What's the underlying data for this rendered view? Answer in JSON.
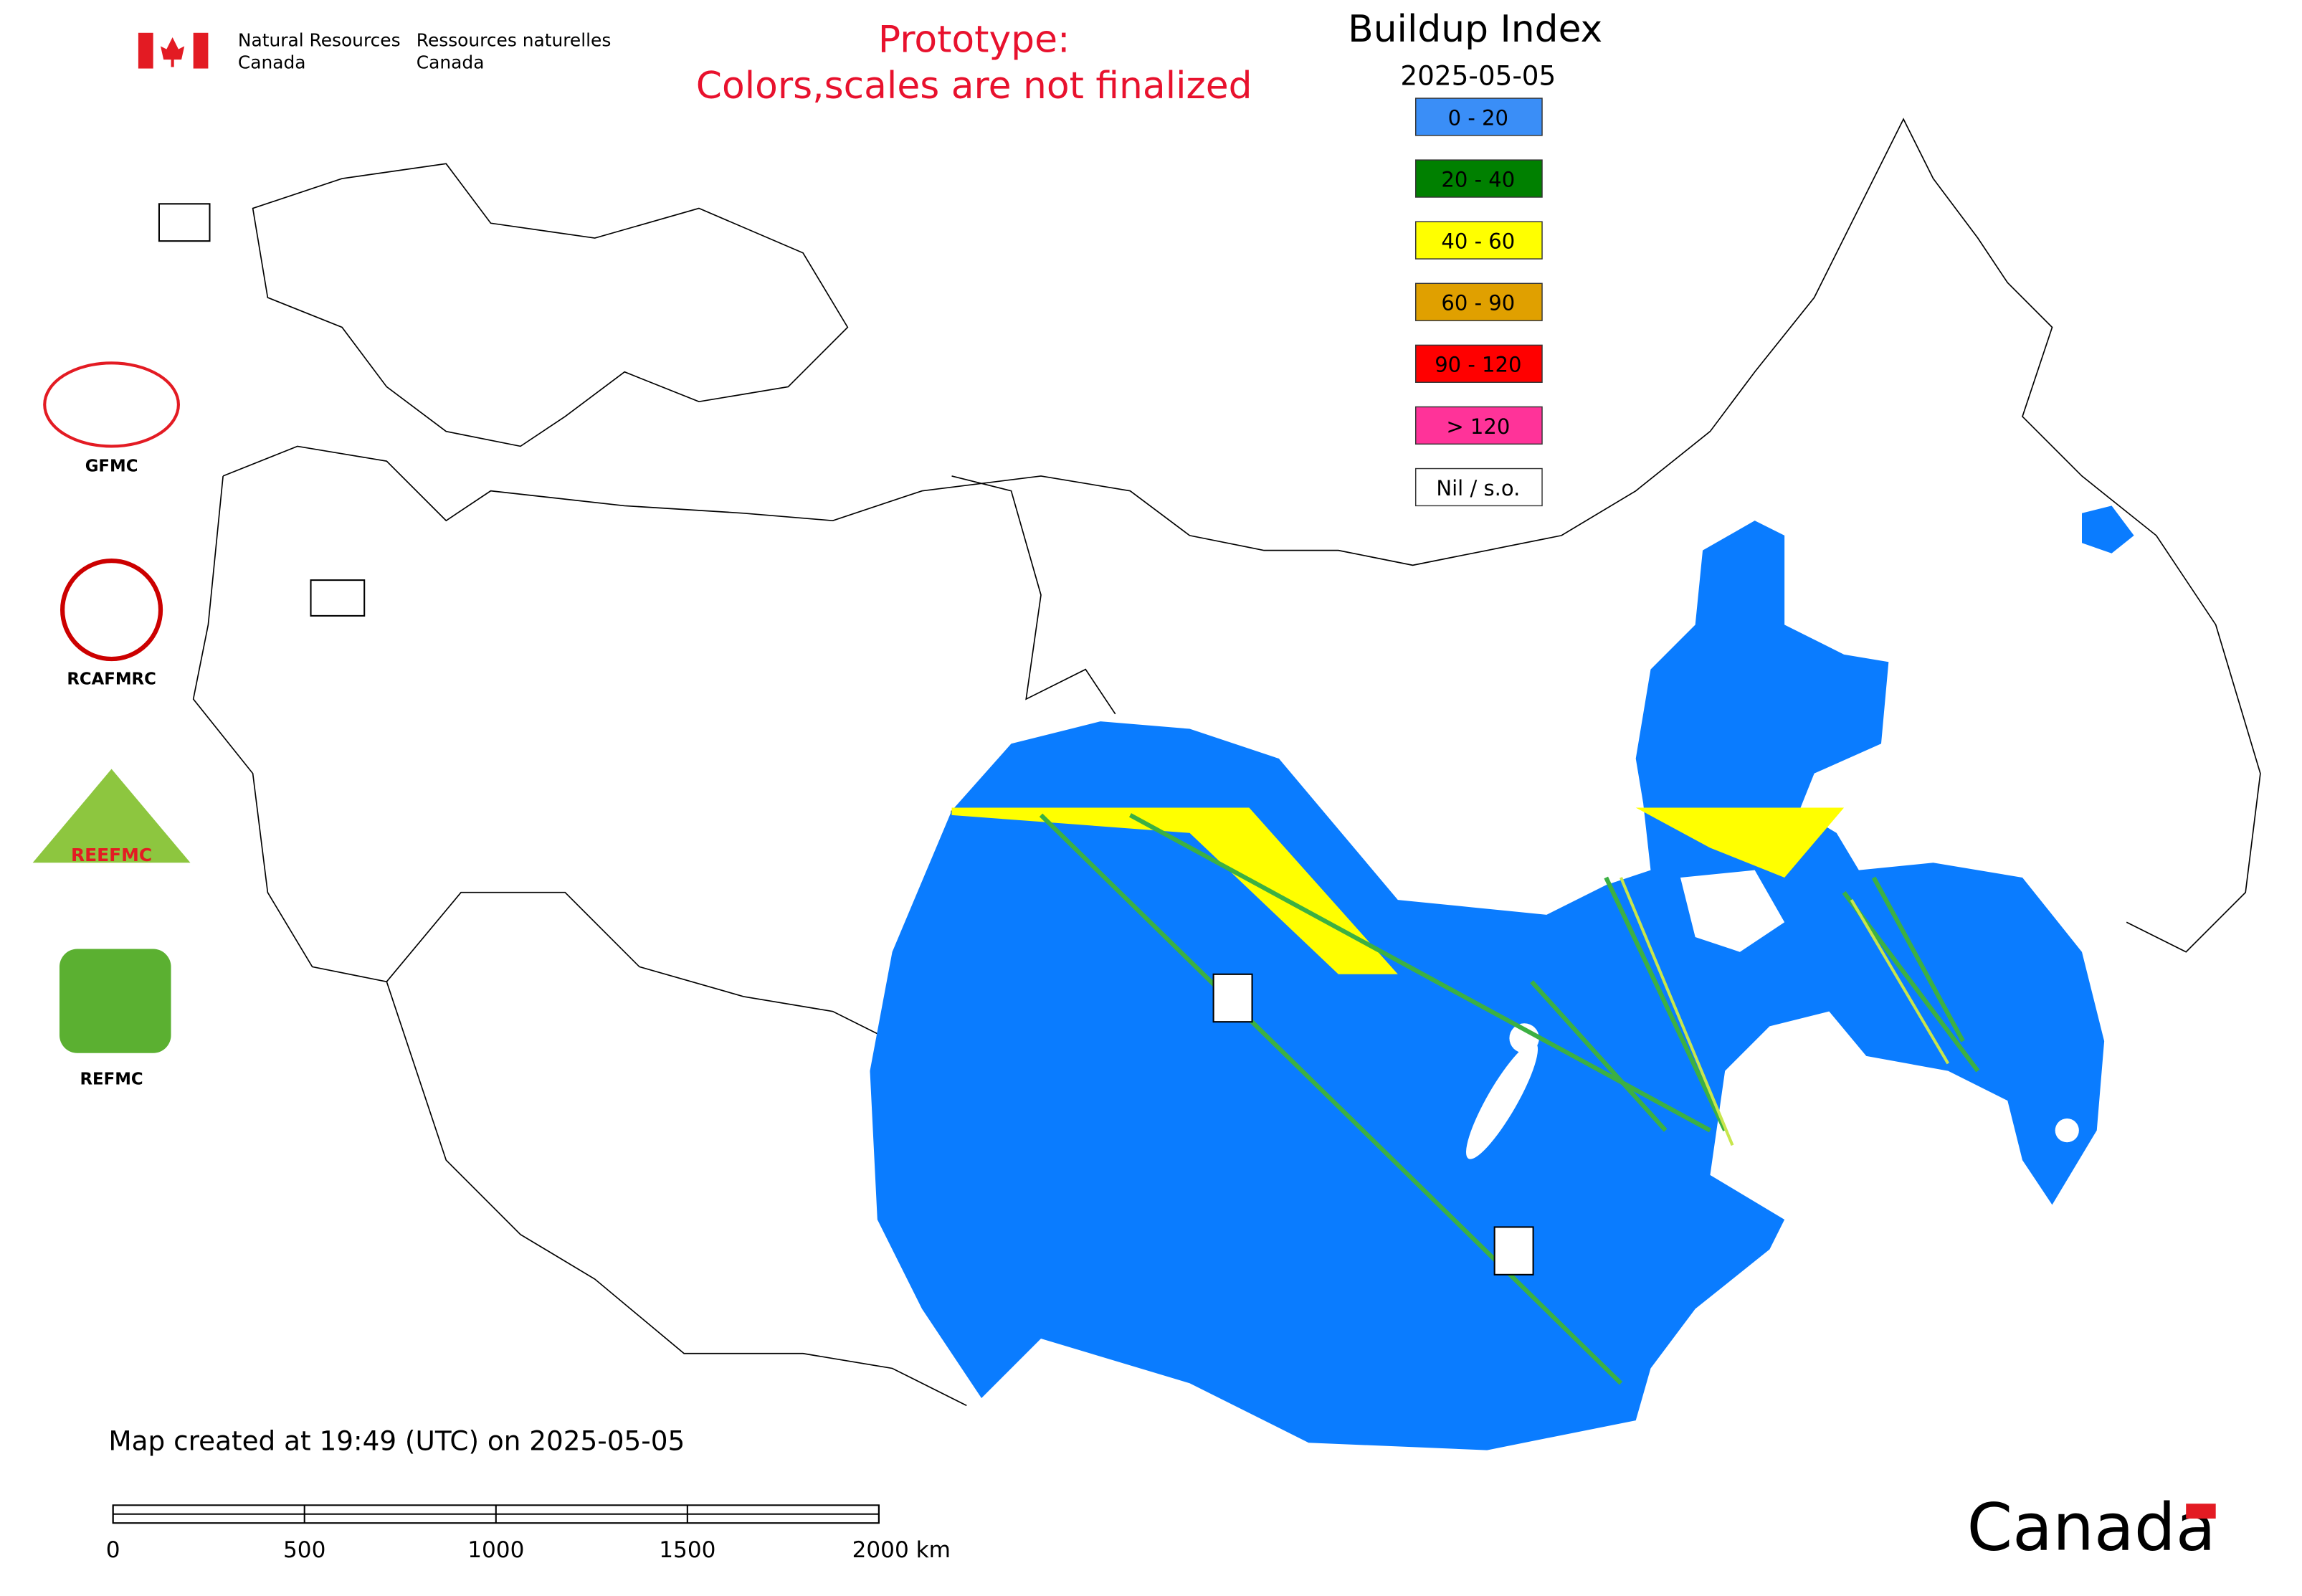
{
  "header": {
    "agency_en": [
      "Natural Resources",
      "Canada"
    ],
    "agency_fr": [
      "Ressources naturelles",
      "Canada"
    ],
    "prototype": [
      "Prototype:",
      "Colors,scales are not finalized"
    ]
  },
  "legend": {
    "title": "Buildup Index",
    "date": "2025-05-05",
    "items": [
      {
        "label": "0 - 20",
        "color": "#3a8ef7"
      },
      {
        "label": "20 - 40",
        "color": "#008000"
      },
      {
        "label": "40 - 60",
        "color": "#ffff00"
      },
      {
        "label": "60 - 90",
        "color": "#e0a000"
      },
      {
        "label": "90 - 120",
        "color": "#ff0000"
      },
      {
        "label": "> 120",
        "color": "#ff3399"
      },
      {
        "label": "Nil / s.o.",
        "color": "#ffffff"
      }
    ]
  },
  "logos": [
    "GFMC",
    "RCAFMRC",
    "REEFMC",
    "REFMC"
  ],
  "footer": {
    "created": "Map created at 19:49 (UTC) on 2025-05-05",
    "scale_labels": [
      "0",
      "500",
      "1000",
      "1500",
      "2000 km"
    ],
    "wordmark": "Canada"
  }
}
